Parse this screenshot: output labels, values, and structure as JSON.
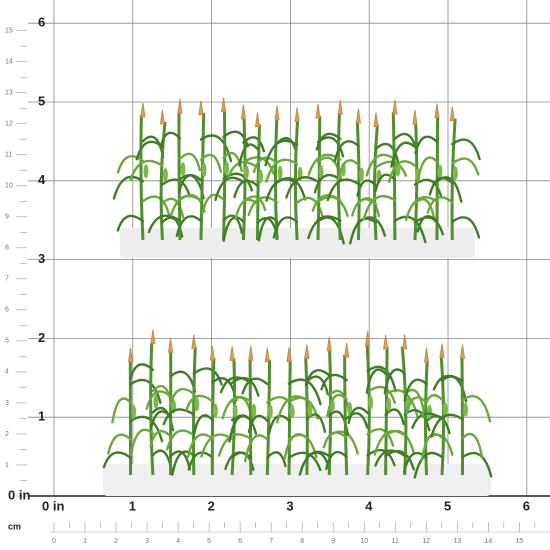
{
  "inch_ruler": {
    "labels": [
      "0 in",
      "1",
      "2",
      "3",
      "4",
      "5",
      "6"
    ]
  },
  "left_inch_labels": [
    "1",
    "2",
    "3",
    "4",
    "5",
    "6"
  ],
  "left_cm_labels": [
    "1",
    "2",
    "3",
    "4",
    "5",
    "6",
    "7",
    "8",
    "9",
    "10",
    "11",
    "12",
    "13",
    "14",
    "15"
  ],
  "cm_ruler": {
    "unit": "cm",
    "labels": [
      "0",
      "1",
      "2",
      "3",
      "4",
      "5",
      "6",
      "7",
      "8",
      "9",
      "10",
      "11",
      "12",
      "13",
      "14",
      "15"
    ]
  }
}
